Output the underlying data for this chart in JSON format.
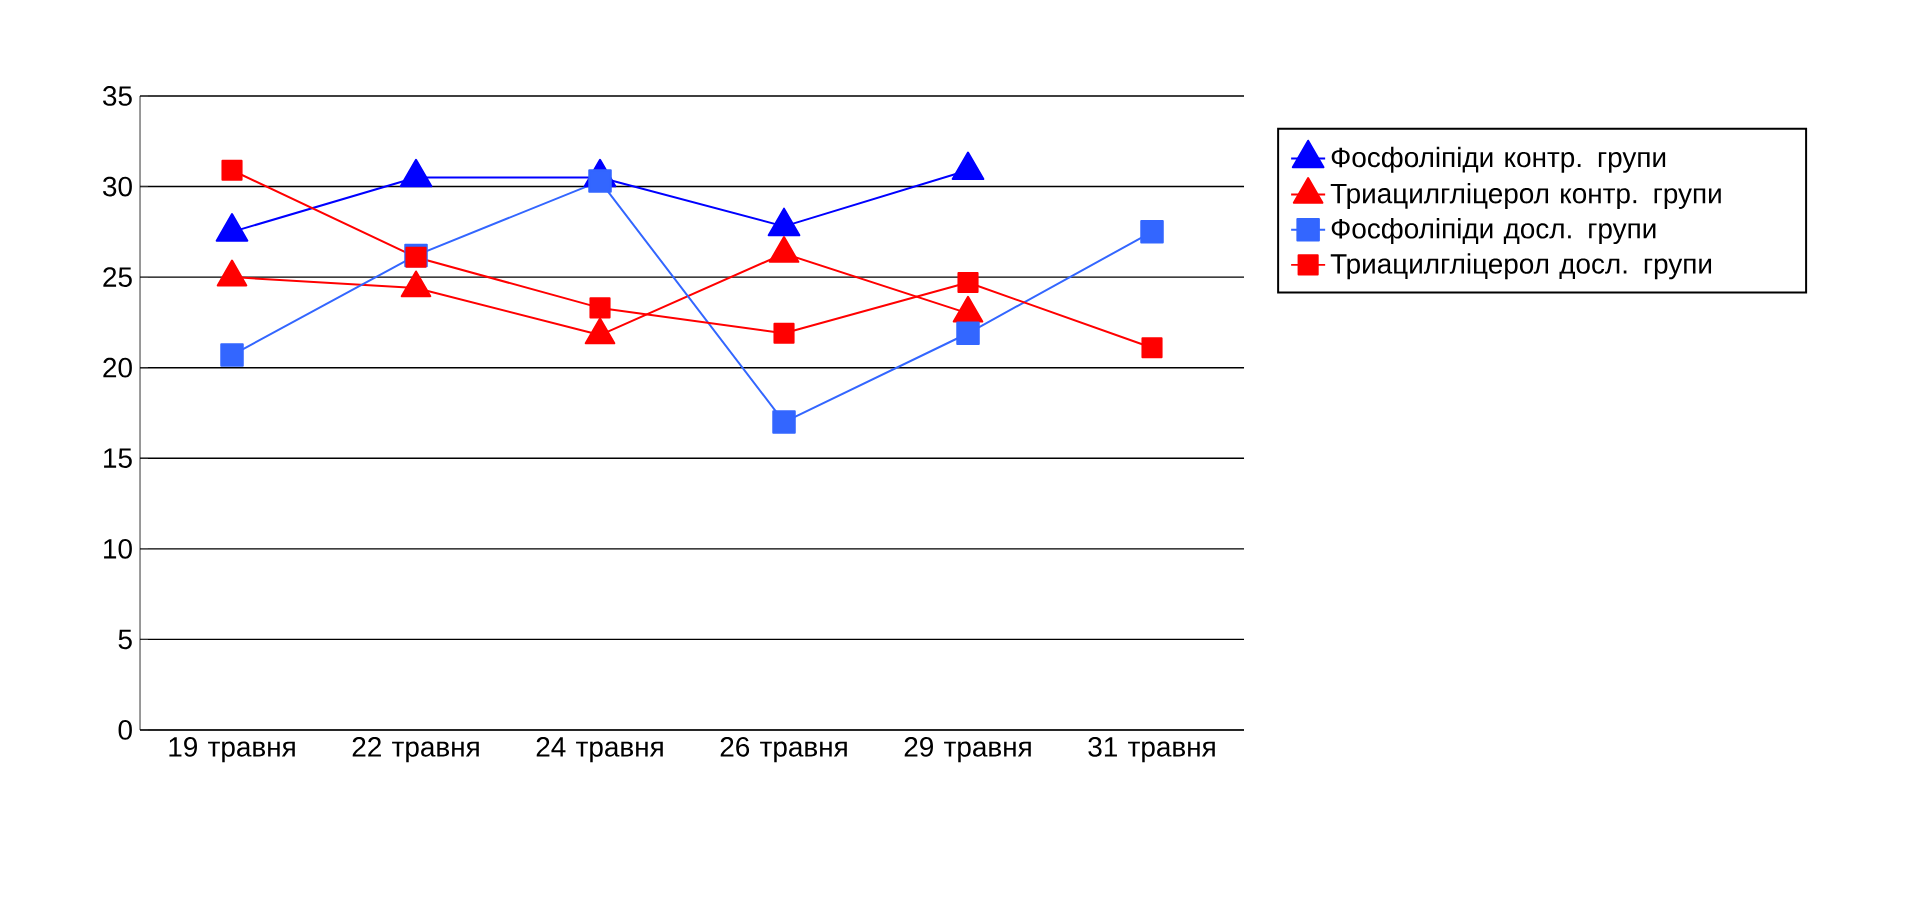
{
  "chart_data": {
    "type": "line",
    "categories": [
      "19 травня",
      "22 травня",
      "24 травня",
      "26 травня",
      "29 травня",
      "31 травня"
    ],
    "series": [
      {
        "name": "Фосфоліпіди контр. групи",
        "color": "#0000ff",
        "marker": "triangle",
        "values": [
          27.5,
          30.5,
          30.5,
          27.8,
          30.9,
          null
        ]
      },
      {
        "name": "Триацилгліцерол контр. групи",
        "color": "#ff0000",
        "marker": "triangle",
        "values": [
          25,
          24.4,
          21.8,
          26.3,
          23,
          null
        ]
      },
      {
        "name": "Фосфоліпіди досл. групи",
        "color": "#3366ff",
        "marker": "square",
        "values": [
          20.7,
          26.2,
          30.3,
          17,
          21.9,
          27.5
        ]
      },
      {
        "name": "Триацилгліцерол досл. групи",
        "color": "#ff0000",
        "marker": "square",
        "values": [
          30.9,
          26.1,
          23.3,
          21.9,
          24.7,
          21.1
        ]
      }
    ],
    "ylim": [
      0,
      35
    ],
    "yticks": [
      0,
      5,
      10,
      15,
      20,
      25,
      30,
      35
    ],
    "grid": "y",
    "legend": "right"
  }
}
